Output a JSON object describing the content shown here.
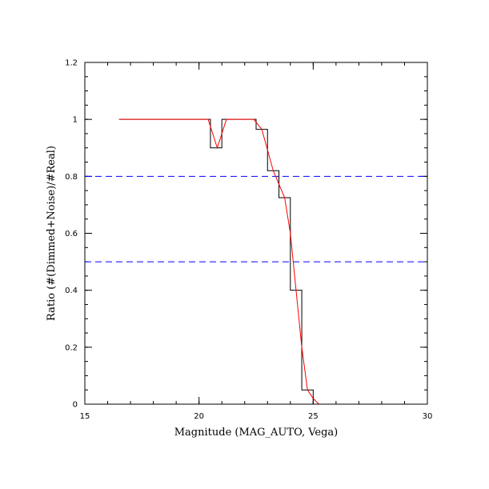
{
  "chart_data": {
    "type": "line",
    "xlabel": "Magnitude (MAG_AUTO, Vega)",
    "ylabel": "Ratio (#(Dimmed+Noise)/#Real)",
    "xlim": [
      15,
      30
    ],
    "ylim": [
      0,
      1.2
    ],
    "x_major_ticks": [
      15,
      20,
      25,
      30
    ],
    "x_tick_labels": [
      "15",
      "20",
      "25",
      "30"
    ],
    "x_minor_step": 1,
    "y_major_ticks": [
      0,
      0.2,
      0.4,
      0.6,
      0.8,
      1,
      1.2
    ],
    "y_tick_labels": [
      "0",
      "0.2",
      "0.4",
      "0.6",
      "0.8",
      "1",
      "1.2"
    ],
    "y_minor_step": 0.05,
    "grid": false,
    "colors": {
      "histogram": "#000000",
      "fit": "#ff0000",
      "reference": "#0000ff"
    },
    "reference_lines": [
      {
        "y": 0.8,
        "style": "dashed",
        "color": "#0000ff"
      },
      {
        "y": 0.5,
        "style": "dashed",
        "color": "#0000ff"
      }
    ],
    "series": [
      {
        "kind": "step-histogram",
        "color": "#000000",
        "x": [
          16.5,
          17.0,
          17.5,
          18.0,
          18.5,
          19.0,
          19.5,
          20.0,
          20.5,
          21.0,
          21.5,
          22.0,
          22.5,
          23.0,
          23.5,
          24.0,
          24.5,
          25.0,
          25.5,
          26.0,
          26.5,
          27.0,
          27.5,
          28.0,
          28.5,
          29.0,
          29.5,
          30.0
        ],
        "y": [
          1.0,
          1.0,
          1.0,
          1.0,
          1.0,
          1.0,
          1.0,
          1.0,
          0.9,
          1.0,
          1.0,
          1.0,
          0.965,
          0.82,
          0.725,
          0.4,
          0.05,
          0.0,
          0.0,
          0.0,
          0.0,
          0.0,
          0.0,
          0.0,
          0.0,
          0.0,
          0.0,
          0.0
        ]
      },
      {
        "kind": "line",
        "color": "#ff0000",
        "x": [
          16.5,
          20.4,
          20.8,
          21.2,
          22.0,
          22.4,
          22.75,
          23.25,
          23.75,
          24.0,
          24.25,
          24.5,
          24.75,
          25.0,
          25.25,
          30.0
        ],
        "y": [
          1.0,
          1.0,
          0.9,
          1.0,
          1.0,
          1.0,
          0.965,
          0.82,
          0.725,
          0.6,
          0.4,
          0.2,
          0.05,
          0.02,
          0.0,
          0.0
        ]
      }
    ]
  }
}
